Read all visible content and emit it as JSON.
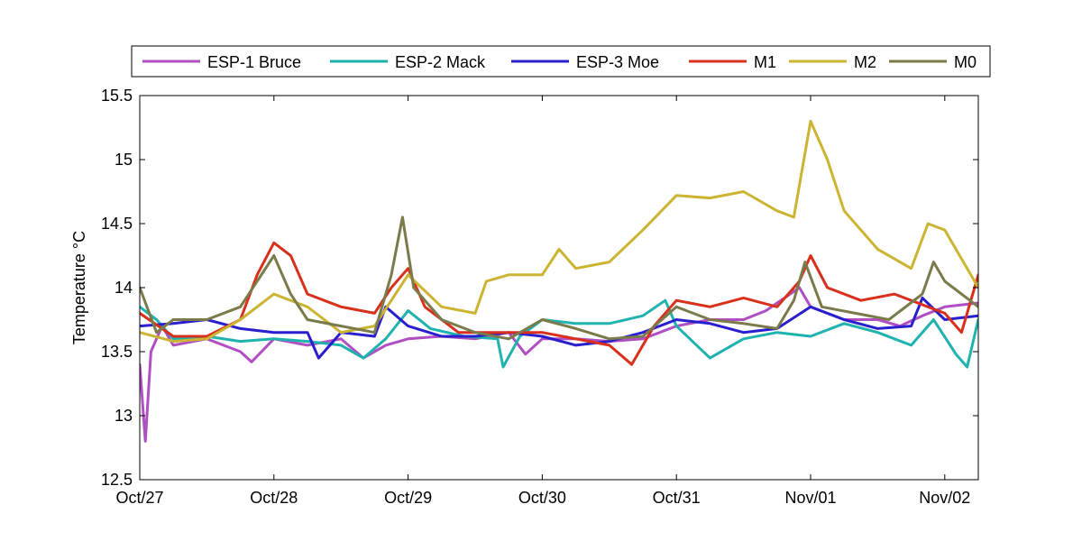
{
  "chart_data": {
    "type": "line",
    "title": "",
    "xlabel": "",
    "ylabel": "Temperature °C",
    "xlim": [
      "2014-10-27 00:00",
      "2014-11-02 06:00"
    ],
    "ylim": [
      12.5,
      15.5
    ],
    "x_tick_labels": [
      "Oct/27",
      "Oct/28",
      "Oct/29",
      "Oct/30",
      "Oct/31",
      "Nov/01",
      "Nov/02"
    ],
    "y_tick_labels": [
      "12.5",
      "13",
      "13.5",
      "14",
      "14.5",
      "15",
      "15.5"
    ],
    "grid": false,
    "legend": {
      "placement": "top",
      "orientation": "horizontal"
    },
    "series": [
      {
        "name": "ESP-1 Bruce",
        "color": "#b04fc4",
        "points": [
          [
            "2014-10-27 00:00",
            13.4
          ],
          [
            "2014-10-27 01:00",
            12.8
          ],
          [
            "2014-10-27 02:00",
            13.5
          ],
          [
            "2014-10-27 04:00",
            13.7
          ],
          [
            "2014-10-27 06:00",
            13.55
          ],
          [
            "2014-10-27 12:00",
            13.6
          ],
          [
            "2014-10-27 18:00",
            13.5
          ],
          [
            "2014-10-27 20:00",
            13.42
          ],
          [
            "2014-10-28 00:00",
            13.6
          ],
          [
            "2014-10-28 06:00",
            13.55
          ],
          [
            "2014-10-28 12:00",
            13.6
          ],
          [
            "2014-10-28 16:00",
            13.45
          ],
          [
            "2014-10-28 20:00",
            13.55
          ],
          [
            "2014-10-29 00:00",
            13.6
          ],
          [
            "2014-10-29 06:00",
            13.62
          ],
          [
            "2014-10-29 12:00",
            13.6
          ],
          [
            "2014-10-29 18:00",
            13.65
          ],
          [
            "2014-10-29 21:00",
            13.48
          ],
          [
            "2014-10-30 00:00",
            13.6
          ],
          [
            "2014-10-30 06:00",
            13.6
          ],
          [
            "2014-10-30 12:00",
            13.58
          ],
          [
            "2014-10-30 18:00",
            13.6
          ],
          [
            "2014-10-31 00:00",
            13.7
          ],
          [
            "2014-10-31 06:00",
            13.75
          ],
          [
            "2014-10-31 12:00",
            13.75
          ],
          [
            "2014-10-31 16:00",
            13.82
          ],
          [
            "2014-10-31 22:00",
            14.0
          ],
          [
            "2014-11-01 00:00",
            13.85
          ],
          [
            "2014-11-01 06:00",
            13.75
          ],
          [
            "2014-11-01 12:00",
            13.75
          ],
          [
            "2014-11-01 16:00",
            13.7
          ],
          [
            "2014-11-01 20:00",
            13.78
          ],
          [
            "2014-11-02 00:00",
            13.85
          ],
          [
            "2014-11-02 06:00",
            13.88
          ]
        ]
      },
      {
        "name": "ESP-2 Mack",
        "color": "#1fb3b0",
        "points": [
          [
            "2014-10-27 00:00",
            13.85
          ],
          [
            "2014-10-27 03:00",
            13.75
          ],
          [
            "2014-10-27 06:00",
            13.6
          ],
          [
            "2014-10-27 12:00",
            13.62
          ],
          [
            "2014-10-27 18:00",
            13.58
          ],
          [
            "2014-10-28 00:00",
            13.6
          ],
          [
            "2014-10-28 06:00",
            13.58
          ],
          [
            "2014-10-28 12:00",
            13.55
          ],
          [
            "2014-10-28 16:00",
            13.45
          ],
          [
            "2014-10-28 20:00",
            13.6
          ],
          [
            "2014-10-29 00:00",
            13.82
          ],
          [
            "2014-10-29 04:00",
            13.68
          ],
          [
            "2014-10-29 10:00",
            13.62
          ],
          [
            "2014-10-29 16:00",
            13.6
          ],
          [
            "2014-10-29 17:00",
            13.38
          ],
          [
            "2014-10-29 20:00",
            13.62
          ],
          [
            "2014-10-30 00:00",
            13.75
          ],
          [
            "2014-10-30 06:00",
            13.72
          ],
          [
            "2014-10-30 12:00",
            13.72
          ],
          [
            "2014-10-30 18:00",
            13.78
          ],
          [
            "2014-10-30 22:00",
            13.9
          ],
          [
            "2014-10-31 00:00",
            13.7
          ],
          [
            "2014-10-31 06:00",
            13.45
          ],
          [
            "2014-10-31 12:00",
            13.6
          ],
          [
            "2014-10-31 18:00",
            13.65
          ],
          [
            "2014-11-01 00:00",
            13.62
          ],
          [
            "2014-11-01 06:00",
            13.72
          ],
          [
            "2014-11-01 12:00",
            13.65
          ],
          [
            "2014-11-01 18:00",
            13.55
          ],
          [
            "2014-11-01 22:00",
            13.75
          ],
          [
            "2014-11-02 02:00",
            13.48
          ],
          [
            "2014-11-02 04:00",
            13.38
          ],
          [
            "2014-11-02 06:00",
            13.75
          ]
        ]
      },
      {
        "name": "ESP-3 Moe",
        "color": "#2a1fcf",
        "points": [
          [
            "2014-10-27 00:00",
            13.7
          ],
          [
            "2014-10-27 06:00",
            13.72
          ],
          [
            "2014-10-27 12:00",
            13.75
          ],
          [
            "2014-10-27 18:00",
            13.68
          ],
          [
            "2014-10-28 00:00",
            13.65
          ],
          [
            "2014-10-28 06:00",
            13.65
          ],
          [
            "2014-10-28 08:00",
            13.45
          ],
          [
            "2014-10-28 12:00",
            13.65
          ],
          [
            "2014-10-28 18:00",
            13.62
          ],
          [
            "2014-10-28 20:00",
            13.85
          ],
          [
            "2014-10-29 00:00",
            13.7
          ],
          [
            "2014-10-29 06:00",
            13.62
          ],
          [
            "2014-10-29 12:00",
            13.62
          ],
          [
            "2014-10-29 18:00",
            13.65
          ],
          [
            "2014-10-30 00:00",
            13.62
          ],
          [
            "2014-10-30 06:00",
            13.55
          ],
          [
            "2014-10-30 12:00",
            13.58
          ],
          [
            "2014-10-30 18:00",
            13.65
          ],
          [
            "2014-10-31 00:00",
            13.75
          ],
          [
            "2014-10-31 06:00",
            13.72
          ],
          [
            "2014-10-31 12:00",
            13.65
          ],
          [
            "2014-10-31 18:00",
            13.68
          ],
          [
            "2014-11-01 00:00",
            13.85
          ],
          [
            "2014-11-01 06:00",
            13.75
          ],
          [
            "2014-11-01 12:00",
            13.68
          ],
          [
            "2014-11-01 18:00",
            13.7
          ],
          [
            "2014-11-01 20:00",
            13.92
          ],
          [
            "2014-11-02 00:00",
            13.75
          ],
          [
            "2014-11-02 06:00",
            13.78
          ]
        ]
      },
      {
        "name": "M1",
        "color": "#d8301c",
        "points": [
          [
            "2014-10-27 00:00",
            13.8
          ],
          [
            "2014-10-27 06:00",
            13.62
          ],
          [
            "2014-10-27 12:00",
            13.62
          ],
          [
            "2014-10-27 18:00",
            13.75
          ],
          [
            "2014-10-27 21:00",
            14.1
          ],
          [
            "2014-10-28 00:00",
            14.35
          ],
          [
            "2014-10-28 03:00",
            14.25
          ],
          [
            "2014-10-28 06:00",
            13.95
          ],
          [
            "2014-10-28 12:00",
            13.85
          ],
          [
            "2014-10-28 18:00",
            13.8
          ],
          [
            "2014-10-28 21:00",
            14.0
          ],
          [
            "2014-10-29 00:00",
            14.15
          ],
          [
            "2014-10-29 03:00",
            13.85
          ],
          [
            "2014-10-29 09:00",
            13.65
          ],
          [
            "2014-10-29 15:00",
            13.65
          ],
          [
            "2014-10-30 00:00",
            13.65
          ],
          [
            "2014-10-30 06:00",
            13.6
          ],
          [
            "2014-10-30 12:00",
            13.55
          ],
          [
            "2014-10-30 16:00",
            13.4
          ],
          [
            "2014-10-30 20:00",
            13.7
          ],
          [
            "2014-10-31 00:00",
            13.9
          ],
          [
            "2014-10-31 06:00",
            13.85
          ],
          [
            "2014-10-31 12:00",
            13.92
          ],
          [
            "2014-10-31 18:00",
            13.85
          ],
          [
            "2014-10-31 22:00",
            14.05
          ],
          [
            "2014-11-01 00:00",
            14.25
          ],
          [
            "2014-11-01 03:00",
            14.0
          ],
          [
            "2014-11-01 09:00",
            13.9
          ],
          [
            "2014-11-01 15:00",
            13.95
          ],
          [
            "2014-11-01 21:00",
            13.85
          ],
          [
            "2014-11-02 00:00",
            13.8
          ],
          [
            "2014-11-02 03:00",
            13.65
          ],
          [
            "2014-11-02 06:00",
            14.1
          ]
        ]
      },
      {
        "name": "M2",
        "color": "#ccb433",
        "points": [
          [
            "2014-10-27 00:00",
            13.65
          ],
          [
            "2014-10-27 06:00",
            13.58
          ],
          [
            "2014-10-27 12:00",
            13.6
          ],
          [
            "2014-10-27 18:00",
            13.75
          ],
          [
            "2014-10-28 00:00",
            13.95
          ],
          [
            "2014-10-28 06:00",
            13.85
          ],
          [
            "2014-10-28 12:00",
            13.65
          ],
          [
            "2014-10-28 18:00",
            13.7
          ],
          [
            "2014-10-29 00:00",
            14.1
          ],
          [
            "2014-10-29 06:00",
            13.85
          ],
          [
            "2014-10-29 12:00",
            13.8
          ],
          [
            "2014-10-29 14:00",
            14.05
          ],
          [
            "2014-10-29 18:00",
            14.1
          ],
          [
            "2014-10-30 00:00",
            14.1
          ],
          [
            "2014-10-30 03:00",
            14.3
          ],
          [
            "2014-10-30 06:00",
            14.15
          ],
          [
            "2014-10-30 12:00",
            14.2
          ],
          [
            "2014-10-30 18:00",
            14.45
          ],
          [
            "2014-10-31 00:00",
            14.72
          ],
          [
            "2014-10-31 06:00",
            14.7
          ],
          [
            "2014-10-31 12:00",
            14.75
          ],
          [
            "2014-10-31 18:00",
            14.6
          ],
          [
            "2014-10-31 21:00",
            14.55
          ],
          [
            "2014-11-01 00:00",
            15.3
          ],
          [
            "2014-11-01 03:00",
            15.0
          ],
          [
            "2014-11-01 06:00",
            14.6
          ],
          [
            "2014-11-01 12:00",
            14.3
          ],
          [
            "2014-11-01 18:00",
            14.15
          ],
          [
            "2014-11-01 21:00",
            14.5
          ],
          [
            "2014-11-02 00:00",
            14.45
          ],
          [
            "2014-11-02 06:00",
            14.0
          ]
        ]
      },
      {
        "name": "M0",
        "color": "#7a7a4a",
        "points": [
          [
            "2014-10-27 00:00",
            14.0
          ],
          [
            "2014-10-27 03:00",
            13.65
          ],
          [
            "2014-10-27 06:00",
            13.75
          ],
          [
            "2014-10-27 12:00",
            13.75
          ],
          [
            "2014-10-27 18:00",
            13.85
          ],
          [
            "2014-10-28 00:00",
            14.25
          ],
          [
            "2014-10-28 03:00",
            13.95
          ],
          [
            "2014-10-28 06:00",
            13.75
          ],
          [
            "2014-10-28 12:00",
            13.7
          ],
          [
            "2014-10-28 18:00",
            13.65
          ],
          [
            "2014-10-28 21:00",
            14.1
          ],
          [
            "2014-10-28 23:00",
            14.55
          ],
          [
            "2014-10-29 01:00",
            14.0
          ],
          [
            "2014-10-29 06:00",
            13.75
          ],
          [
            "2014-10-29 12:00",
            13.65
          ],
          [
            "2014-10-29 18:00",
            13.6
          ],
          [
            "2014-10-30 00:00",
            13.75
          ],
          [
            "2014-10-30 06:00",
            13.68
          ],
          [
            "2014-10-30 12:00",
            13.6
          ],
          [
            "2014-10-30 18:00",
            13.62
          ],
          [
            "2014-10-31 00:00",
            13.85
          ],
          [
            "2014-10-31 06:00",
            13.75
          ],
          [
            "2014-10-31 12:00",
            13.72
          ],
          [
            "2014-10-31 18:00",
            13.68
          ],
          [
            "2014-10-31 21:00",
            13.9
          ],
          [
            "2014-10-31 23:00",
            14.2
          ],
          [
            "2014-11-01 02:00",
            13.85
          ],
          [
            "2014-11-01 08:00",
            13.8
          ],
          [
            "2014-11-01 14:00",
            13.75
          ],
          [
            "2014-11-01 20:00",
            13.95
          ],
          [
            "2014-11-01 22:00",
            14.2
          ],
          [
            "2014-11-02 00:00",
            14.05
          ],
          [
            "2014-11-02 06:00",
            13.85
          ]
        ]
      }
    ]
  }
}
